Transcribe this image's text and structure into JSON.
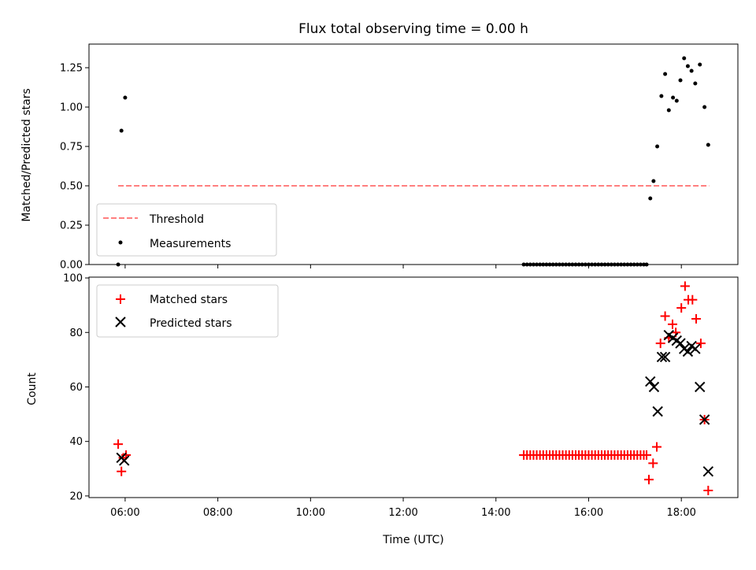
{
  "chart_data": [
    {
      "type": "scatter",
      "title": "Flux total observing time = 0.00 h",
      "xlabel": "",
      "ylabel": "Matched/Predicted stars",
      "xlim": [
        5.22,
        19.22
      ],
      "ylim": [
        0,
        1.4
      ],
      "yticks": [
        "0.00",
        "0.25",
        "0.50",
        "0.75",
        "1.00",
        "1.25"
      ],
      "xticks": [
        6,
        8,
        10,
        12,
        14,
        16,
        18
      ],
      "threshold": {
        "name": "Threshold",
        "y": 0.5,
        "x": [
          5.85,
          18.6
        ],
        "color": "#ff7f7f",
        "style": "dashed"
      },
      "series": [
        {
          "name": "Measurements",
          "color": "#000000",
          "marker": "dot",
          "points": [
            [
              5.85,
              0.0
            ],
            [
              5.92,
              0.85
            ],
            [
              6.0,
              1.06
            ],
            [
              14.6,
              0.0
            ],
            [
              14.67,
              0.0
            ],
            [
              14.74,
              0.0
            ],
            [
              14.81,
              0.0
            ],
            [
              14.88,
              0.0
            ],
            [
              14.95,
              0.0
            ],
            [
              15.02,
              0.0
            ],
            [
              15.09,
              0.0
            ],
            [
              15.16,
              0.0
            ],
            [
              15.23,
              0.0
            ],
            [
              15.3,
              0.0
            ],
            [
              15.37,
              0.0
            ],
            [
              15.44,
              0.0
            ],
            [
              15.51,
              0.0
            ],
            [
              15.58,
              0.0
            ],
            [
              15.65,
              0.0
            ],
            [
              15.72,
              0.0
            ],
            [
              15.79,
              0.0
            ],
            [
              15.86,
              0.0
            ],
            [
              15.93,
              0.0
            ],
            [
              16.0,
              0.0
            ],
            [
              16.07,
              0.0
            ],
            [
              16.14,
              0.0
            ],
            [
              16.21,
              0.0
            ],
            [
              16.28,
              0.0
            ],
            [
              16.35,
              0.0
            ],
            [
              16.42,
              0.0
            ],
            [
              16.49,
              0.0
            ],
            [
              16.56,
              0.0
            ],
            [
              16.63,
              0.0
            ],
            [
              16.7,
              0.0
            ],
            [
              16.77,
              0.0
            ],
            [
              16.84,
              0.0
            ],
            [
              16.91,
              0.0
            ],
            [
              16.98,
              0.0
            ],
            [
              17.05,
              0.0
            ],
            [
              17.12,
              0.0
            ],
            [
              17.19,
              0.0
            ],
            [
              17.25,
              0.0
            ],
            [
              17.33,
              0.42
            ],
            [
              17.4,
              0.53
            ],
            [
              17.48,
              0.75
            ],
            [
              17.57,
              1.07
            ],
            [
              17.65,
              1.21
            ],
            [
              17.73,
              0.98
            ],
            [
              17.82,
              1.06
            ],
            [
              17.9,
              1.04
            ],
            [
              17.98,
              1.17
            ],
            [
              18.06,
              1.31
            ],
            [
              18.14,
              1.26
            ],
            [
              18.22,
              1.23
            ],
            [
              18.3,
              1.15
            ],
            [
              18.4,
              1.27
            ],
            [
              18.5,
              1.0
            ],
            [
              18.58,
              0.76
            ]
          ]
        }
      ],
      "legend": {
        "placement": "lower-left",
        "entries": [
          "Threshold",
          "Measurements"
        ]
      }
    },
    {
      "type": "scatter",
      "title": "",
      "xlabel": "Time (UTC)",
      "ylabel": "Count",
      "xlim": [
        5.22,
        19.22
      ],
      "ylim": [
        19.4,
        100.3
      ],
      "yticks": [
        "20",
        "40",
        "60",
        "80",
        "100"
      ],
      "xticks": [
        6,
        8,
        10,
        12,
        14,
        16,
        18
      ],
      "xtick_labels": [
        "06:00",
        "08:00",
        "10:00",
        "12:00",
        "14:00",
        "16:00",
        "18:00"
      ],
      "series": [
        {
          "name": "Matched stars",
          "color": "#ff0000",
          "marker": "plus",
          "points": [
            [
              5.85,
              39
            ],
            [
              5.92,
              29
            ],
            [
              5.96,
              34
            ],
            [
              6.02,
              35
            ],
            [
              14.6,
              35
            ],
            [
              14.67,
              35
            ],
            [
              14.74,
              35
            ],
            [
              14.81,
              35
            ],
            [
              14.88,
              35
            ],
            [
              14.95,
              35
            ],
            [
              15.02,
              35
            ],
            [
              15.09,
              35
            ],
            [
              15.16,
              35
            ],
            [
              15.23,
              35
            ],
            [
              15.3,
              35
            ],
            [
              15.37,
              35
            ],
            [
              15.44,
              35
            ],
            [
              15.51,
              35
            ],
            [
              15.58,
              35
            ],
            [
              15.65,
              35
            ],
            [
              15.72,
              35
            ],
            [
              15.79,
              35
            ],
            [
              15.86,
              35
            ],
            [
              15.93,
              35
            ],
            [
              16.0,
              35
            ],
            [
              16.07,
              35
            ],
            [
              16.14,
              35
            ],
            [
              16.21,
              35
            ],
            [
              16.28,
              35
            ],
            [
              16.35,
              35
            ],
            [
              16.42,
              35
            ],
            [
              16.49,
              35
            ],
            [
              16.56,
              35
            ],
            [
              16.63,
              35
            ],
            [
              16.7,
              35
            ],
            [
              16.77,
              35
            ],
            [
              16.84,
              35
            ],
            [
              16.91,
              35
            ],
            [
              16.98,
              35
            ],
            [
              17.05,
              35
            ],
            [
              17.12,
              35
            ],
            [
              17.19,
              35
            ],
            [
              17.25,
              35
            ],
            [
              17.3,
              26
            ],
            [
              17.39,
              32
            ],
            [
              17.47,
              38
            ],
            [
              17.55,
              76
            ],
            [
              17.65,
              86
            ],
            [
              17.73,
              78
            ],
            [
              17.81,
              83
            ],
            [
              17.88,
              80
            ],
            [
              18.0,
              89
            ],
            [
              18.08,
              97
            ],
            [
              18.15,
              92
            ],
            [
              18.24,
              92
            ],
            [
              18.32,
              85
            ],
            [
              18.42,
              76
            ],
            [
              18.5,
              48
            ],
            [
              18.58,
              22
            ]
          ]
        },
        {
          "name": "Predicted stars",
          "color": "#000000",
          "marker": "x",
          "points": [
            [
              5.92,
              34
            ],
            [
              5.98,
              33
            ],
            [
              17.33,
              62
            ],
            [
              17.41,
              60
            ],
            [
              17.49,
              51
            ],
            [
              17.58,
              71
            ],
            [
              17.65,
              71
            ],
            [
              17.73,
              79
            ],
            [
              17.82,
              78
            ],
            [
              17.9,
              77
            ],
            [
              17.98,
              76
            ],
            [
              18.06,
              74
            ],
            [
              18.14,
              73
            ],
            [
              18.22,
              75
            ],
            [
              18.3,
              74
            ],
            [
              18.4,
              60
            ],
            [
              18.5,
              48
            ],
            [
              18.58,
              29
            ]
          ]
        }
      ],
      "legend": {
        "placement": "upper-left",
        "entries": [
          "Matched stars",
          "Predicted stars"
        ]
      }
    }
  ]
}
